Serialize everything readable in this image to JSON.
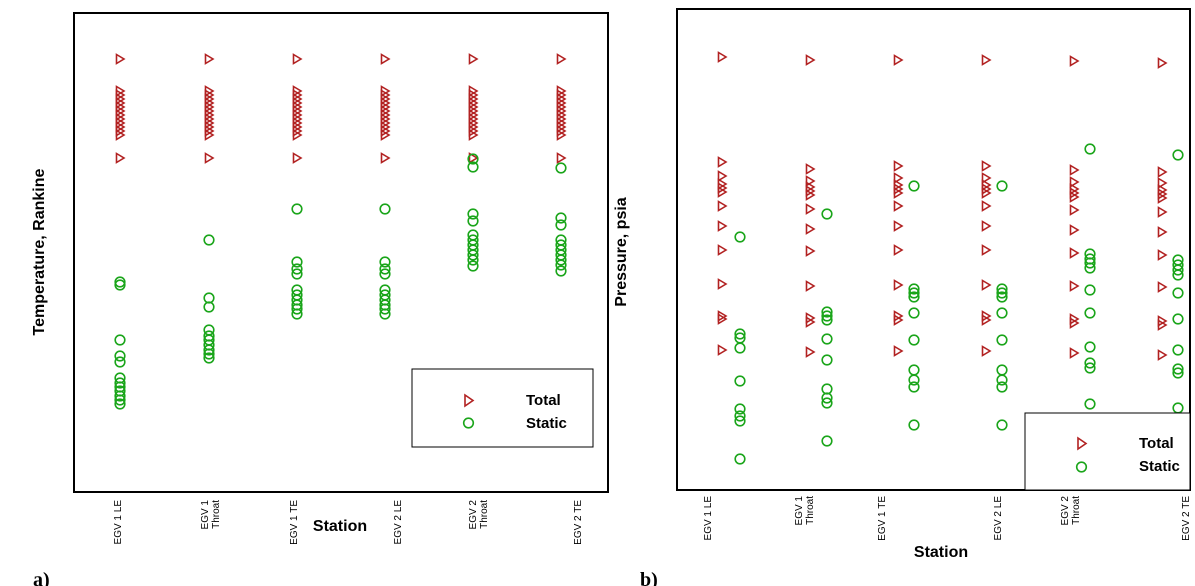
{
  "chart_data": [
    {
      "type": "scatter",
      "panel_label": "a)",
      "xlabel": "Station",
      "ylabel": "Temperature, Rankine",
      "categories": [
        [
          "EGV 1 LE"
        ],
        [
          "EGV 1",
          "Throat"
        ],
        [
          "EGV 1 TE"
        ],
        [
          "EGV 2 LE"
        ],
        [
          "EGV 2",
          "Throat"
        ],
        [
          "EGV 2 TE"
        ]
      ],
      "y_tick_labels": "none",
      "legend": {
        "placement": "bottom-right",
        "entries": [
          "Total",
          "Static"
        ]
      },
      "series": [
        {
          "name": "Total",
          "marker": "triangle-right-open",
          "color": "#b22222",
          "values": [
            [
              59,
              91,
              95,
              99,
              103,
              107,
              111,
              115,
              119,
              123,
              127,
              131,
              135,
              158
            ],
            [
              59,
              91,
              95,
              99,
              103,
              107,
              111,
              115,
              119,
              123,
              127,
              131,
              135,
              158
            ],
            [
              59,
              91,
              95,
              99,
              103,
              107,
              111,
              115,
              119,
              123,
              127,
              131,
              135,
              158
            ],
            [
              59,
              91,
              95,
              99,
              103,
              107,
              111,
              115,
              119,
              123,
              127,
              131,
              135,
              158
            ],
            [
              59,
              91,
              95,
              99,
              103,
              107,
              111,
              115,
              119,
              123,
              127,
              131,
              135,
              158
            ],
            [
              59,
              91,
              95,
              99,
              103,
              107,
              111,
              115,
              119,
              123,
              127,
              131,
              135,
              158
            ]
          ]
        },
        {
          "name": "Static",
          "marker": "circle-open",
          "color": "#1aa51a",
          "values": [
            [
              282,
              285,
              340,
              356,
              362,
              378,
              383,
              387,
              391,
              396,
              400,
              404
            ],
            [
              240,
              298,
              307,
              330,
              336,
              340,
              345,
              350,
              354,
              358
            ],
            [
              209,
              262,
              269,
              274,
              290,
              295,
              300,
              305,
              309,
              314
            ],
            [
              209,
              262,
              269,
              274,
              290,
              295,
              300,
              305,
              309,
              314
            ],
            [
              159,
              167,
              214,
              221,
              235,
              240,
              245,
              250,
              255,
              260,
              266
            ],
            [
              168,
              218,
              225,
              240,
              245,
              250,
              255,
              260,
              265,
              271
            ]
          ]
        }
      ]
    },
    {
      "type": "scatter",
      "panel_label": "b)",
      "xlabel": "Station",
      "ylabel": "Pressure, psia",
      "categories": [
        [
          "EGV 1 LE"
        ],
        [
          "EGV 1",
          "Throat"
        ],
        [
          "EGV 1 TE"
        ],
        [
          "EGV 2 LE"
        ],
        [
          "EGV 2",
          "Throat"
        ],
        [
          "EGV 2 TE"
        ]
      ],
      "y_tick_labels": "none",
      "legend": {
        "placement": "bottom-right",
        "entries": [
          "Total",
          "Static"
        ]
      },
      "series": [
        {
          "name": "Total",
          "marker": "triangle-right-open",
          "color": "#b22222",
          "values": [
            [
              57,
              162,
              176,
              184,
              188,
              192,
              206,
              226,
              250,
              284,
              316,
              319,
              350
            ],
            [
              60,
              169,
              181,
              187,
              191,
              195,
              209,
              229,
              251,
              286,
              318,
              322,
              352
            ],
            [
              60,
              166,
              178,
              185,
              189,
              193,
              206,
              226,
              250,
              285,
              316,
              320,
              351
            ],
            [
              60,
              166,
              178,
              185,
              189,
              193,
              206,
              226,
              250,
              285,
              316,
              320,
              351
            ],
            [
              61,
              170,
              182,
              189,
              193,
              197,
              210,
              230,
              253,
              286,
              319,
              323,
              353
            ],
            [
              63,
              172,
              183,
              190,
              194,
              198,
              212,
              232,
              255,
              287,
              321,
              325,
              355
            ]
          ]
        },
        {
          "name": "Static",
          "marker": "circle-open",
          "color": "#1aa51a",
          "values": [
            [
              237,
              334,
              338,
              348,
              381,
              409,
              416,
              421,
              459
            ],
            [
              214,
              312,
              316,
              320,
              339,
              360,
              389,
              398,
              403,
              441
            ],
            [
              186,
              289,
              293,
              297,
              313,
              340,
              370,
              380,
              387,
              425
            ],
            [
              186,
              289,
              293,
              297,
              313,
              340,
              370,
              380,
              387,
              425
            ],
            [
              149,
              254,
              259,
              263,
              268,
              290,
              313,
              347,
              363,
              368,
              404
            ],
            [
              155,
              260,
              265,
              270,
              275,
              293,
              319,
              350,
              369,
              373,
              408
            ]
          ]
        }
      ]
    }
  ]
}
